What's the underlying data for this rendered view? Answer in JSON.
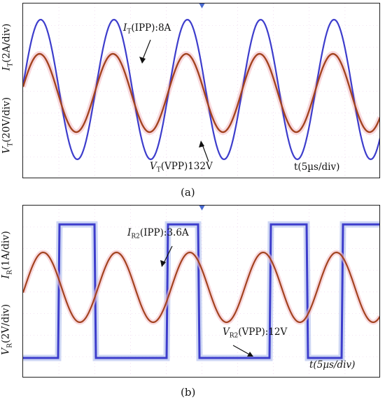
{
  "chart_data": [
    {
      "panel": "a",
      "type": "line",
      "caption": "(a)",
      "y_labels": [
        "IT(2A/div)",
        "VT(20V/div)"
      ],
      "y_label_parts": [
        {
          "sym": "I",
          "sub": "T",
          "rest": "(2A/div)"
        },
        {
          "sym": "V",
          "sub": "T",
          "rest": "(20V/div)"
        }
      ],
      "xlabel": "t(5µs/div)",
      "annotations": [
        {
          "sym": "I",
          "sub": "T",
          "rest": "(IPP):8A"
        },
        {
          "sym": "V",
          "sub": "T",
          "rest": "(VPP)132V"
        }
      ],
      "time_per_div_us": 5,
      "series": [
        {
          "name": "IT",
          "color": "#3d3dcc",
          "waveform": "sine",
          "peak_to_peak": 8,
          "unit": "A",
          "period_divs": 2.05
        },
        {
          "name": "VT",
          "color": "#a3431f",
          "waveform": "sine",
          "peak_to_peak": 132,
          "unit": "V",
          "period_divs": 2.05
        }
      ]
    },
    {
      "panel": "b",
      "type": "line",
      "caption": "(b)",
      "y_labels": [
        "IR(1A/div)",
        "VR(2V/div)"
      ],
      "y_label_parts": [
        {
          "sym": "I",
          "sub": "R",
          "rest": "(1A/div)"
        },
        {
          "sym": "V",
          "sub": "R",
          "rest": "(2V/div)"
        }
      ],
      "xlabel": "t(5µs/div)",
      "annotations": [
        {
          "sym": "I",
          "sub": "R2",
          "rest": "(IPP):3.6A"
        },
        {
          "sym": "V",
          "sub": "R2",
          "rest": "(VPP):12V"
        }
      ],
      "time_per_div_us": 5,
      "series": [
        {
          "name": "IR2",
          "color": "#a3431f",
          "waveform": "sine",
          "peak_to_peak": 3.6,
          "unit": "A",
          "period_divs": 2.05
        },
        {
          "name": "VR2",
          "color": "#3d3dcc",
          "waveform": "square",
          "peak_to_peak": 12,
          "unit": "V",
          "period_divs": 4.1
        }
      ]
    }
  ]
}
